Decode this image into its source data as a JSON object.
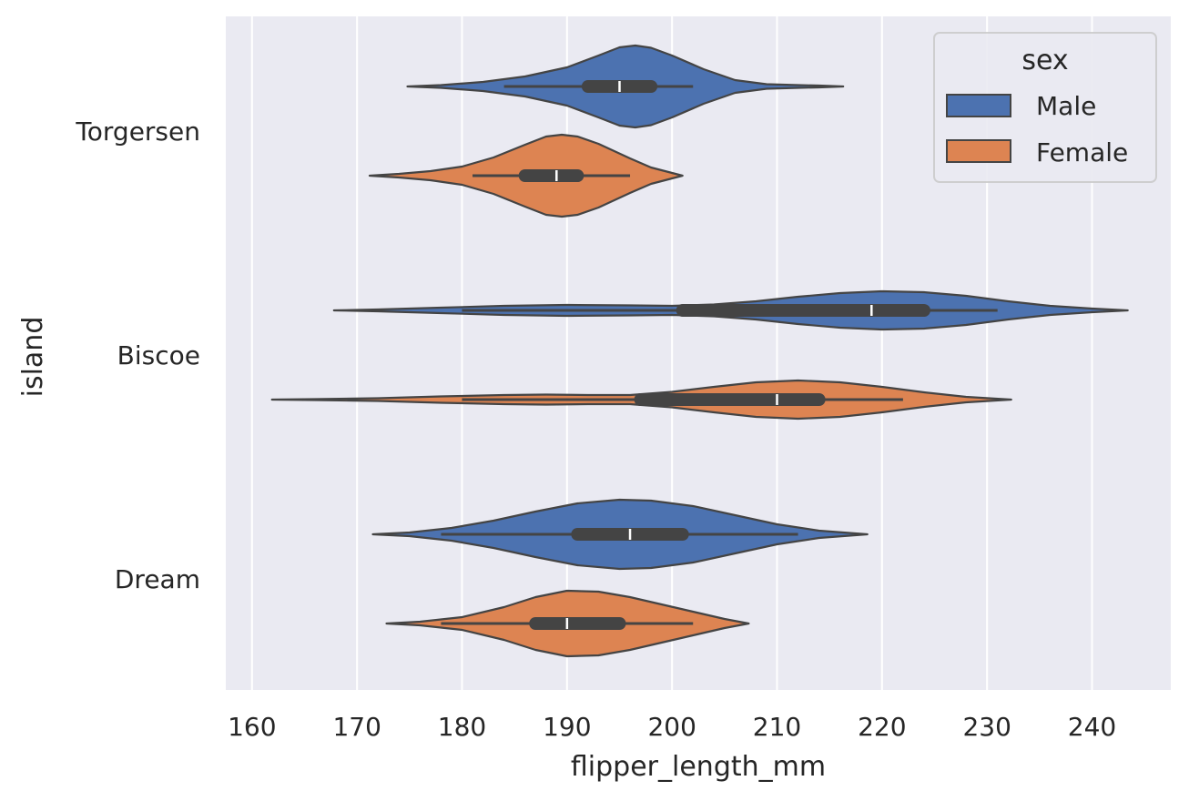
{
  "chart_data": {
    "type": "violin",
    "orientation": "horizontal",
    "xlabel": "flipper_length_mm",
    "ylabel": "island",
    "xlim": [
      157.5,
      247.5
    ],
    "x_ticks": [
      160,
      170,
      180,
      190,
      200,
      210,
      220,
      230,
      240
    ],
    "categories": [
      "Torgersen",
      "Biscoe",
      "Dream"
    ],
    "grid": true,
    "legend": {
      "title": "sex",
      "placement": "top-right",
      "entries": [
        {
          "label": "Male",
          "color": "#4c72b0"
        },
        {
          "label": "Female",
          "color": "#dd8452"
        }
      ]
    },
    "series": [
      {
        "name": "Male",
        "color": "#4c72b0",
        "violins": [
          {
            "category": "Torgersen",
            "min": 184,
            "q1": 192,
            "median": 195,
            "q3": 198,
            "max": 202,
            "density": [
              [
                174.8,
                0
              ],
              [
                178,
                0.03
              ],
              [
                182,
                0.1
              ],
              [
                186,
                0.22
              ],
              [
                190,
                0.42
              ],
              [
                193,
                0.68
              ],
              [
                195,
                0.86
              ],
              [
                196.5,
                0.9
              ],
              [
                198,
                0.85
              ],
              [
                200,
                0.68
              ],
              [
                203,
                0.38
              ],
              [
                206,
                0.14
              ],
              [
                209,
                0.05
              ],
              [
                212,
                0.03
              ],
              [
                214,
                0.02
              ],
              [
                216.3,
                0
              ]
            ]
          },
          {
            "category": "Biscoe",
            "min": 180,
            "q1": 201,
            "median": 219,
            "q3": 224,
            "max": 231,
            "density": [
              [
                167.8,
                0
              ],
              [
                172,
                0.02
              ],
              [
                178,
                0.06
              ],
              [
                184,
                0.1
              ],
              [
                190,
                0.12
              ],
              [
                196,
                0.11
              ],
              [
                200,
                0.1
              ],
              [
                204,
                0.13
              ],
              [
                208,
                0.2
              ],
              [
                212,
                0.3
              ],
              [
                216,
                0.38
              ],
              [
                220,
                0.42
              ],
              [
                224,
                0.4
              ],
              [
                228,
                0.32
              ],
              [
                232,
                0.2
              ],
              [
                236,
                0.1
              ],
              [
                240,
                0.04
              ],
              [
                243.4,
                0
              ]
            ]
          },
          {
            "category": "Dream",
            "min": 178,
            "q1": 191,
            "median": 196,
            "q3": 201,
            "max": 212,
            "density": [
              [
                171.5,
                0
              ],
              [
                175,
                0.04
              ],
              [
                179,
                0.14
              ],
              [
                183,
                0.3
              ],
              [
                187,
                0.5
              ],
              [
                191,
                0.68
              ],
              [
                195,
                0.76
              ],
              [
                198,
                0.74
              ],
              [
                202,
                0.62
              ],
              [
                206,
                0.42
              ],
              [
                210,
                0.22
              ],
              [
                214,
                0.08
              ],
              [
                218.6,
                0
              ]
            ]
          }
        ]
      },
      {
        "name": "Female",
        "color": "#dd8452",
        "violins": [
          {
            "category": "Torgersen",
            "min": 181,
            "q1": 186,
            "median": 189,
            "q3": 191,
            "max": 196,
            "density": [
              [
                171.2,
                0
              ],
              [
                174,
                0.04
              ],
              [
                177,
                0.1
              ],
              [
                180,
                0.2
              ],
              [
                183,
                0.4
              ],
              [
                186,
                0.68
              ],
              [
                188,
                0.86
              ],
              [
                189.5,
                0.9
              ],
              [
                191,
                0.86
              ],
              [
                193,
                0.7
              ],
              [
                196,
                0.38
              ],
              [
                198,
                0.18
              ],
              [
                200,
                0.06
              ],
              [
                201,
                0
              ]
            ]
          },
          {
            "category": "Biscoe",
            "min": 180,
            "q1": 197,
            "median": 210,
            "q3": 214,
            "max": 222,
            "density": [
              [
                161.9,
                0
              ],
              [
                166,
                0.01
              ],
              [
                172,
                0.03
              ],
              [
                178,
                0.07
              ],
              [
                184,
                0.1
              ],
              [
                188,
                0.11
              ],
              [
                192,
                0.1
              ],
              [
                196,
                0.1
              ],
              [
                200,
                0.17
              ],
              [
                204,
                0.28
              ],
              [
                208,
                0.38
              ],
              [
                212,
                0.42
              ],
              [
                216,
                0.38
              ],
              [
                220,
                0.28
              ],
              [
                224,
                0.16
              ],
              [
                228,
                0.06
              ],
              [
                232.3,
                0
              ]
            ]
          },
          {
            "category": "Dream",
            "min": 178,
            "q1": 187,
            "median": 190,
            "q3": 195,
            "max": 202,
            "density": [
              [
                172.8,
                0
              ],
              [
                176,
                0.04
              ],
              [
                180,
                0.14
              ],
              [
                184,
                0.36
              ],
              [
                187,
                0.58
              ],
              [
                190,
                0.72
              ],
              [
                193,
                0.7
              ],
              [
                196,
                0.58
              ],
              [
                199,
                0.42
              ],
              [
                202,
                0.26
              ],
              [
                205,
                0.1
              ],
              [
                207.3,
                0
              ]
            ]
          }
        ]
      }
    ]
  }
}
